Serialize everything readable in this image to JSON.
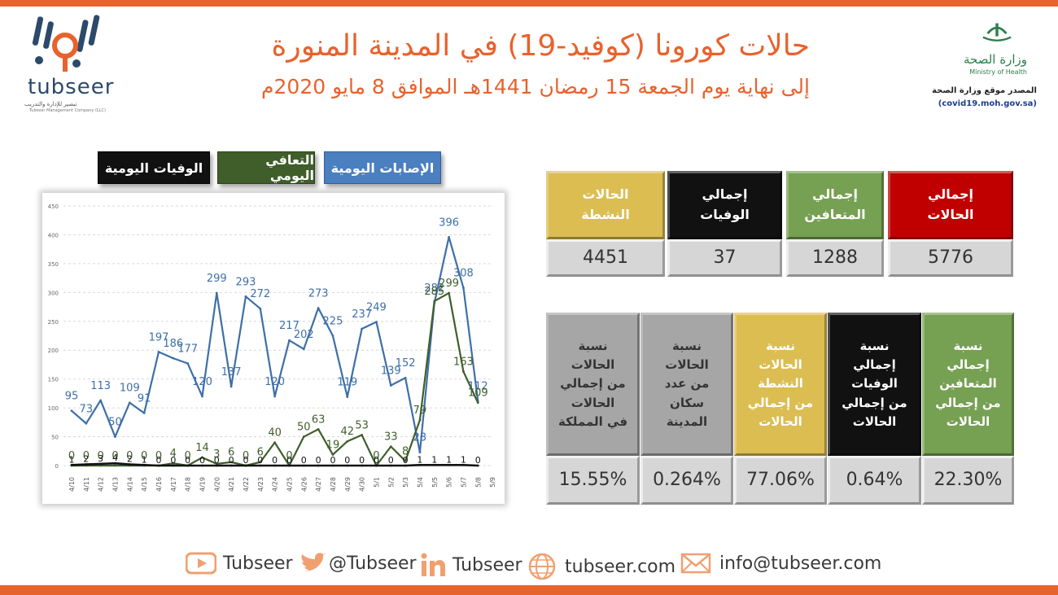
{
  "header": {
    "title": "حالات كورونا (كوفيد-19) في المدينة المنورة",
    "subtitle": "إلى نهاية يوم الجمعة 15 رمضان 1441هـ الموافق 8 مايو 2020م"
  },
  "brand": {
    "name": "tubseer",
    "tagline": "تبصير للإدارة والتدريب",
    "tagline_en": "Tubseer Management Company (LLC)"
  },
  "ministry": {
    "name_ar": "وزارة الصحة",
    "name_en": "Ministry of Health",
    "source_label": "المصدر موقع وزارة الصحة",
    "source_url": "(covid19.moh.gov.sa)"
  },
  "legend": {
    "infections": "الإصابات اليومية",
    "recoveries": "التعافي اليومي",
    "deaths": "الوفيات اليومية"
  },
  "colors": {
    "accent": "#e8622c",
    "infections": "#3d6fa8",
    "recoveries": "#3f5e2a",
    "deaths": "#111111",
    "total_cases": "#c00000",
    "recovered": "#76a052",
    "dead": "#111111",
    "active": "#dcbd52",
    "grey_header": "#a6a6a6"
  },
  "chart_data": {
    "type": "line",
    "categories": [
      "4/10",
      "4/11",
      "4/12",
      "4/13",
      "4/14",
      "4/15",
      "4/16",
      "4/17",
      "4/18",
      "4/19",
      "4/20",
      "4/21",
      "4/22",
      "4/23",
      "4/24",
      "4/25",
      "4/26",
      "4/27",
      "4/28",
      "4/29",
      "4/30",
      "5/1",
      "5/2",
      "5/3",
      "5/4",
      "5/5",
      "5/6",
      "5/7",
      "5/8"
    ],
    "x_tick_labels": [
      "4/10",
      "4/11",
      "4/12",
      "4/13",
      "4/14",
      "4/15",
      "4/16",
      "4/17",
      "4/18",
      "4/19",
      "4/20",
      "4/21",
      "4/22",
      "4/23",
      "4/24",
      "4/25",
      "4/26",
      "4/27",
      "4/28",
      "4/29",
      "4/30",
      "5/1",
      "5/2",
      "5/3",
      "5/4",
      "5/5",
      "5/6",
      "5/7",
      "5/8",
      "5/9"
    ],
    "ylim": [
      0,
      450
    ],
    "yticks": [
      0,
      50,
      100,
      150,
      200,
      250,
      300,
      350,
      400,
      450
    ],
    "series": [
      {
        "name": "الإصابات اليومية",
        "values": [
          95,
          73,
          113,
          50,
          109,
          91,
          197,
          186,
          177,
          120,
          299,
          137,
          293,
          272,
          120,
          217,
          202,
          273,
          225,
          119,
          237,
          249,
          139,
          152,
          23,
          282,
          396,
          308,
          112
        ]
      },
      {
        "name": "التعافي اليومي",
        "values": [
          0,
          0,
          0,
          0,
          0,
          0,
          0,
          4,
          0,
          14,
          3,
          6,
          0,
          6,
          40,
          0,
          50,
          63,
          19,
          42,
          53,
          0,
          33,
          8,
          79,
          285,
          299,
          163,
          109
        ]
      },
      {
        "name": "الوفيات اليومية",
        "values": [
          1,
          2,
          3,
          4,
          2,
          1,
          0,
          0,
          0,
          0,
          0,
          0,
          0,
          0,
          0,
          0,
          0,
          0,
          0,
          0,
          0,
          0,
          0,
          0,
          1,
          1,
          1,
          1,
          0
        ]
      }
    ]
  },
  "totals": [
    {
      "label_line1": "إجمالي",
      "label_line2": "الحالات",
      "value": "5776"
    },
    {
      "label_line1": "إجمالي",
      "label_line2": "المتعافين",
      "value": "1288"
    },
    {
      "label_line1": "إجمالي",
      "label_line2": "الوفيات",
      "value": "37"
    },
    {
      "label_line1": "الحالات",
      "label_line2": "النشطة",
      "value": "4451"
    }
  ],
  "ratios": [
    {
      "lines": [
        "نسبة",
        "إجمالي",
        "المتعافين",
        "من إجمالي",
        "الحالات"
      ],
      "value": "22.30%"
    },
    {
      "lines": [
        "نسبة",
        "إجمالي الوفيات",
        "من إجمالي",
        "الحالات"
      ],
      "value": "0.64%"
    },
    {
      "lines": [
        "نسبة",
        "الحالات",
        "النشطة",
        "من إجمالي",
        "الحالات"
      ],
      "value": "77.06%"
    },
    {
      "lines": [
        "نسبة",
        "الحالات",
        "من عدد",
        "سكان",
        "المدينة"
      ],
      "value": "0.264%"
    },
    {
      "lines": [
        "نسبة",
        "الحالات",
        "من إجمالي",
        "الحالات",
        "في المملكة"
      ],
      "value": "15.55%"
    }
  ],
  "social": {
    "youtube": "Tubseer",
    "twitter": "@Tubseer",
    "linkedin": "Tubseer",
    "web": "tubseer.com",
    "email": "info@tubseer.com"
  }
}
